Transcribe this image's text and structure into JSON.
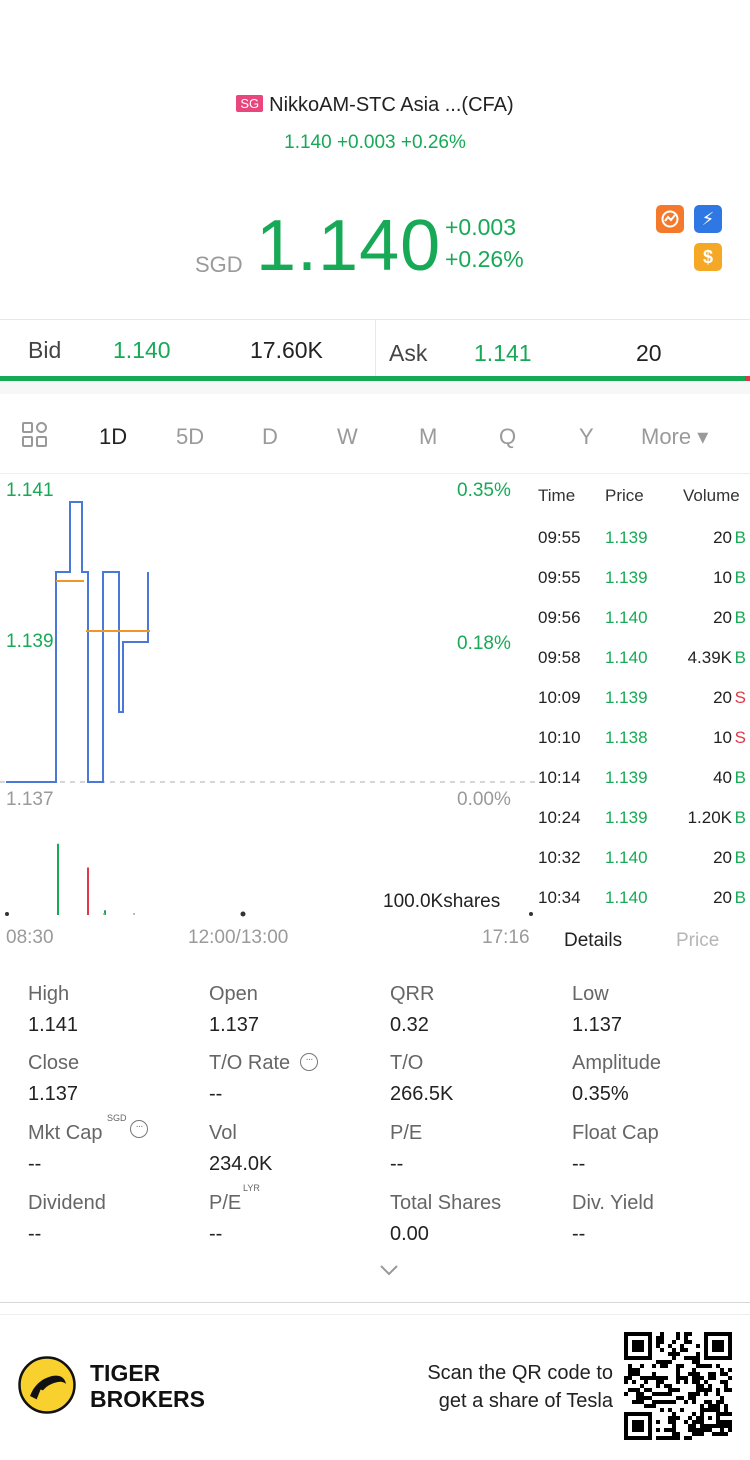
{
  "header": {
    "market_badge": "SG",
    "title": "NikkoAM-STC Asia ...(CFA)",
    "subtitle": "1.140 +0.003 +0.26%",
    "currency": "SGD",
    "price": "1.140",
    "change": "+0.003",
    "change_pct": "+0.26%",
    "icons": [
      "chart-badge-icon",
      "flash-badge-icon",
      "dollar-badge-icon"
    ],
    "icon_glyphs": {
      "flash": "⚡",
      "dollar": "$"
    }
  },
  "quote": {
    "bid_label": "Bid",
    "bid_price": "1.140",
    "bid_volume": "17.60K",
    "ask_label": "Ask",
    "ask_price": "1.141",
    "ask_volume": "20"
  },
  "tabs": {
    "items": [
      "1D",
      "5D",
      "D",
      "W",
      "M",
      "Q",
      "Y",
      "More ▾"
    ],
    "active": "1D"
  },
  "chart": {
    "y_high": "1.141",
    "y_mid": "1.139",
    "y_low": "1.137",
    "pct_high": "0.35%",
    "pct_mid": "0.18%",
    "pct_low": "0.00%",
    "volume_label": "100.0Kshares",
    "time_ticks": [
      "08:30",
      "12:00/13:00",
      "17:16"
    ]
  },
  "chart_data": {
    "type": "line",
    "title": "",
    "xlabel": "",
    "ylabel": "",
    "ylim": [
      1.137,
      1.141
    ],
    "x_ticks": [
      "08:30",
      "12:00/13:00",
      "17:16"
    ],
    "series": [
      {
        "values": [
          1.137,
          1.137,
          1.137,
          1.14,
          1.14,
          1.141,
          1.141,
          1.14,
          1.14,
          1.137,
          1.137,
          1.14,
          1.14,
          1.138,
          1.139,
          1.139,
          1.14
        ]
      },
      {
        "values": [
          1.14,
          1.14,
          1.139,
          1.139,
          1.139,
          1.139
        ]
      }
    ],
    "volume_bars": [
      {
        "side": "buy",
        "height": 0.75
      },
      {
        "side": "sell",
        "height": 0.5
      },
      {
        "side": "buy",
        "height": 0.05
      }
    ]
  },
  "trades": {
    "headers": [
      "Time",
      "Price",
      "Volume"
    ],
    "rows": [
      {
        "time": "09:55",
        "price": "1.139",
        "vol": "20",
        "side": "B"
      },
      {
        "time": "09:55",
        "price": "1.139",
        "vol": "10",
        "side": "B"
      },
      {
        "time": "09:56",
        "price": "1.140",
        "vol": "20",
        "side": "B"
      },
      {
        "time": "09:58",
        "price": "1.140",
        "vol": "4.39K",
        "side": "B"
      },
      {
        "time": "10:09",
        "price": "1.139",
        "vol": "20",
        "side": "S"
      },
      {
        "time": "10:10",
        "price": "1.138",
        "vol": "10",
        "side": "S"
      },
      {
        "time": "10:14",
        "price": "1.139",
        "vol": "40",
        "side": "B"
      },
      {
        "time": "10:24",
        "price": "1.139",
        "vol": "1.20K",
        "side": "B"
      },
      {
        "time": "10:32",
        "price": "1.140",
        "vol": "20",
        "side": "B"
      },
      {
        "time": "10:34",
        "price": "1.140",
        "vol": "20",
        "side": "B"
      }
    ],
    "details_tab": "Details",
    "price_tab": "Price"
  },
  "stats": {
    "high_label": "High",
    "high": "1.141",
    "open_label": "Open",
    "open": "1.137",
    "qrr_label": "QRR",
    "qrr": "0.32",
    "low_label": "Low",
    "low": "1.137",
    "close_label": "Close",
    "close": "1.137",
    "to_rate_label": "T/O Rate",
    "to_rate": "--",
    "to_label": "T/O",
    "to": "266.5K",
    "amplitude_label": "Amplitude",
    "amplitude": "0.35%",
    "mktcap_label": "Mkt Cap",
    "mktcap_sup": "SGD",
    "mktcap": "--",
    "vol_label": "Vol",
    "vol": "234.0K",
    "pe_label": "P/E",
    "pe": "--",
    "floatcap_label": "Float Cap",
    "floatcap": "--",
    "dividend_label": "Dividend",
    "dividend": "--",
    "pe_lyr_label": "P/E",
    "pe_lyr_sup": "LYR",
    "pe_lyr": "--",
    "total_shares_label": "Total Shares",
    "total_shares": "0.00",
    "div_yield_label": "Div. Yield",
    "div_yield": "--",
    "info_glyph": "···"
  },
  "footer": {
    "brand_line1": "TIGER",
    "brand_line2": "BROKERS",
    "scan_line1": "Scan the QR code to",
    "scan_line2": "get a share of Tesla"
  },
  "colors": {
    "green": "#18a957",
    "red": "#e0384a",
    "line_blue": "#4a78d8",
    "avg_orange": "#f0962a",
    "badge_pink": "#e8467c"
  }
}
